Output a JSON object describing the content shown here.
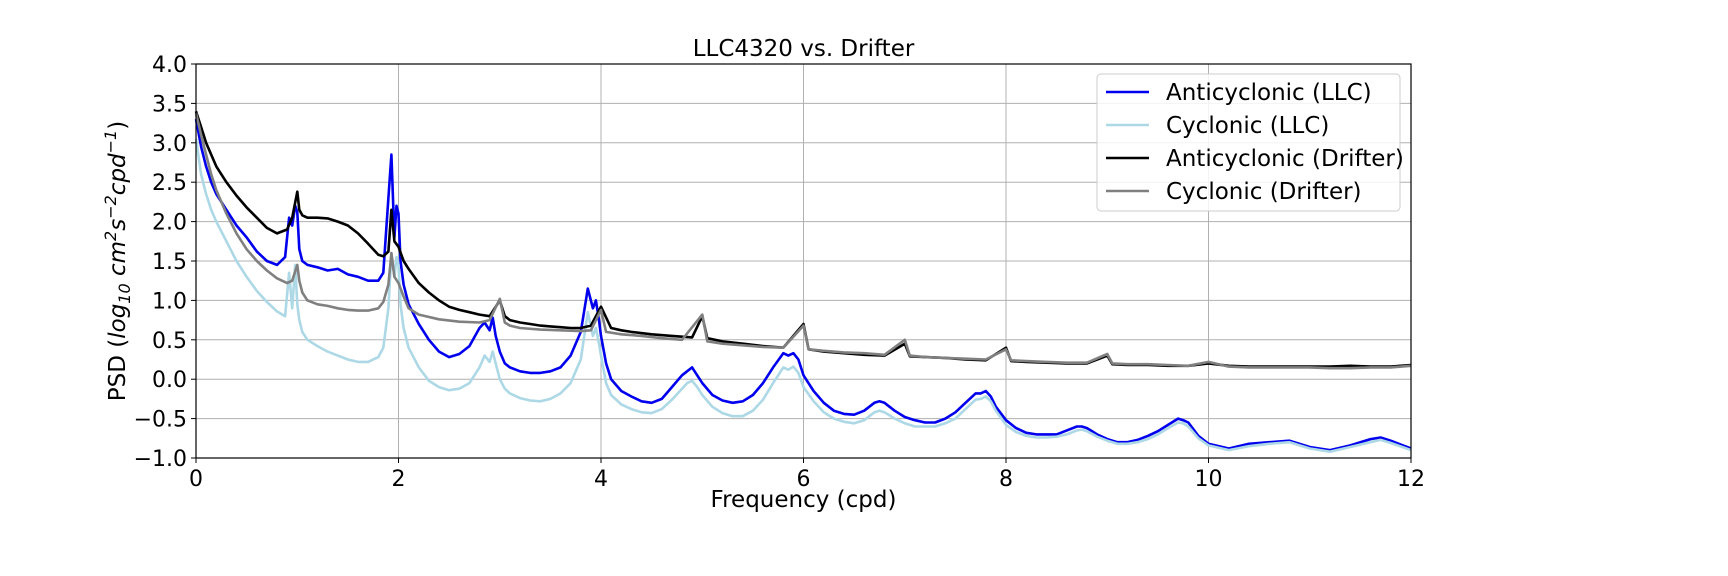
{
  "chart_data": {
    "type": "line",
    "title": "LLC4320 vs. Drifter",
    "xlabel": "Frequency (cpd)",
    "ylabel": "PSD (log10 cm2s-2cpd-1)",
    "ylabel_parts": {
      "prefix": "PSD (",
      "log": "log",
      "log_sub": "10",
      "cm": " cm",
      "cm_sup": "2",
      "s": "s",
      "s_sup": "−2",
      "cpd": "cpd",
      "cpd_sup": "−1",
      "suffix": ")"
    },
    "xlim": [
      0,
      12
    ],
    "ylim": [
      -1.0,
      4.0
    ],
    "xticks": [
      0,
      2,
      4,
      6,
      8,
      10,
      12
    ],
    "xtick_labels": [
      "0",
      "2",
      "4",
      "6",
      "8",
      "10",
      "12"
    ],
    "yticks": [
      -1.0,
      -0.5,
      0.0,
      0.5,
      1.0,
      1.5,
      2.0,
      2.5,
      3.0,
      3.5,
      4.0
    ],
    "ytick_labels": [
      "−1.0",
      "−0.5",
      "0.0",
      "0.5",
      "1.0",
      "1.5",
      "2.0",
      "2.5",
      "3.0",
      "3.5",
      "4.0"
    ],
    "grid": true,
    "legend_position": "top-right",
    "series": [
      {
        "name": "Anticyclonic (LLC)",
        "color": "#0000ee",
        "x": [
          0,
          0.05,
          0.1,
          0.15,
          0.2,
          0.3,
          0.4,
          0.5,
          0.6,
          0.7,
          0.8,
          0.88,
          0.92,
          0.95,
          0.98,
          1.0,
          1.02,
          1.05,
          1.1,
          1.2,
          1.3,
          1.4,
          1.5,
          1.6,
          1.7,
          1.8,
          1.85,
          1.9,
          1.93,
          1.96,
          1.98,
          2.0,
          2.02,
          2.05,
          2.1,
          2.2,
          2.3,
          2.4,
          2.5,
          2.6,
          2.7,
          2.8,
          2.85,
          2.9,
          2.93,
          2.96,
          3.0,
          3.05,
          3.1,
          3.2,
          3.3,
          3.4,
          3.5,
          3.6,
          3.7,
          3.8,
          3.87,
          3.92,
          3.95,
          3.98,
          4.0,
          4.05,
          4.1,
          4.2,
          4.3,
          4.4,
          4.5,
          4.6,
          4.7,
          4.8,
          4.85,
          4.9,
          4.95,
          5.0,
          5.1,
          5.2,
          5.3,
          5.4,
          5.5,
          5.6,
          5.7,
          5.8,
          5.85,
          5.9,
          5.95,
          6.0,
          6.1,
          6.2,
          6.3,
          6.4,
          6.5,
          6.6,
          6.7,
          6.75,
          6.8,
          6.85,
          6.9,
          7.0,
          7.1,
          7.2,
          7.3,
          7.4,
          7.5,
          7.6,
          7.7,
          7.75,
          7.8,
          7.85,
          7.9,
          8.0,
          8.1,
          8.2,
          8.3,
          8.4,
          8.5,
          8.6,
          8.7,
          8.75,
          8.8,
          8.9,
          9.0,
          9.1,
          9.2,
          9.3,
          9.4,
          9.5,
          9.6,
          9.7,
          9.75,
          9.8,
          9.9,
          10.0,
          10.2,
          10.4,
          10.6,
          10.8,
          11.0,
          11.2,
          11.4,
          11.6,
          11.7,
          11.8,
          12.0
        ],
        "y": [
          3.3,
          2.95,
          2.7,
          2.5,
          2.35,
          2.15,
          1.95,
          1.8,
          1.62,
          1.5,
          1.45,
          1.55,
          2.05,
          1.95,
          2.2,
          2.12,
          1.65,
          1.5,
          1.45,
          1.42,
          1.38,
          1.4,
          1.33,
          1.3,
          1.25,
          1.25,
          1.35,
          2.3,
          2.85,
          1.8,
          2.2,
          2.1,
          1.5,
          1.2,
          0.95,
          0.7,
          0.5,
          0.35,
          0.28,
          0.32,
          0.42,
          0.65,
          0.72,
          0.62,
          0.78,
          0.55,
          0.35,
          0.2,
          0.15,
          0.1,
          0.08,
          0.08,
          0.1,
          0.15,
          0.3,
          0.6,
          1.15,
          0.9,
          1.0,
          0.75,
          0.55,
          0.2,
          0.0,
          -0.15,
          -0.22,
          -0.28,
          -0.3,
          -0.25,
          -0.1,
          0.05,
          0.1,
          0.15,
          0.05,
          -0.05,
          -0.2,
          -0.27,
          -0.3,
          -0.28,
          -0.2,
          -0.05,
          0.15,
          0.33,
          0.3,
          0.33,
          0.25,
          0.05,
          -0.15,
          -0.3,
          -0.4,
          -0.44,
          -0.45,
          -0.4,
          -0.3,
          -0.28,
          -0.3,
          -0.35,
          -0.4,
          -0.48,
          -0.52,
          -0.55,
          -0.55,
          -0.5,
          -0.42,
          -0.3,
          -0.18,
          -0.18,
          -0.15,
          -0.22,
          -0.35,
          -0.52,
          -0.62,
          -0.68,
          -0.7,
          -0.7,
          -0.7,
          -0.65,
          -0.6,
          -0.6,
          -0.62,
          -0.7,
          -0.76,
          -0.8,
          -0.8,
          -0.77,
          -0.72,
          -0.66,
          -0.58,
          -0.5,
          -0.52,
          -0.55,
          -0.72,
          -0.82,
          -0.88,
          -0.82,
          -0.8,
          -0.78,
          -0.86,
          -0.9,
          -0.84,
          -0.76,
          -0.74,
          -0.78,
          -0.88
        ]
      },
      {
        "name": "Cyclonic (LLC)",
        "color": "#add8e6",
        "x": [
          0,
          0.05,
          0.1,
          0.15,
          0.2,
          0.3,
          0.4,
          0.5,
          0.6,
          0.7,
          0.8,
          0.88,
          0.92,
          0.95,
          0.98,
          1.0,
          1.02,
          1.05,
          1.1,
          1.2,
          1.3,
          1.4,
          1.5,
          1.6,
          1.7,
          1.8,
          1.85,
          1.9,
          1.93,
          1.96,
          1.98,
          2.0,
          2.02,
          2.05,
          2.1,
          2.2,
          2.3,
          2.4,
          2.5,
          2.6,
          2.7,
          2.8,
          2.85,
          2.9,
          2.93,
          2.96,
          3.0,
          3.05,
          3.1,
          3.2,
          3.3,
          3.4,
          3.5,
          3.6,
          3.7,
          3.8,
          3.87,
          3.92,
          3.95,
          3.98,
          4.0,
          4.05,
          4.1,
          4.2,
          4.3,
          4.4,
          4.5,
          4.6,
          4.7,
          4.8,
          4.85,
          4.9,
          4.95,
          5.0,
          5.1,
          5.2,
          5.3,
          5.4,
          5.5,
          5.6,
          5.7,
          5.8,
          5.85,
          5.9,
          5.95,
          6.0,
          6.1,
          6.2,
          6.3,
          6.4,
          6.5,
          6.6,
          6.7,
          6.75,
          6.8,
          6.85,
          6.9,
          7.0,
          7.1,
          7.2,
          7.3,
          7.4,
          7.5,
          7.6,
          7.7,
          7.75,
          7.8,
          7.85,
          7.9,
          8.0,
          8.1,
          8.2,
          8.3,
          8.4,
          8.5,
          8.6,
          8.7,
          8.75,
          8.8,
          8.9,
          9.0,
          9.1,
          9.2,
          9.3,
          9.4,
          9.5,
          9.6,
          9.7,
          9.75,
          9.8,
          9.9,
          10.0,
          10.2,
          10.4,
          10.6,
          10.8,
          11.0,
          11.2,
          11.4,
          11.6,
          11.7,
          11.8,
          12.0
        ],
        "y": [
          3.05,
          2.6,
          2.35,
          2.15,
          2.0,
          1.75,
          1.5,
          1.3,
          1.12,
          0.98,
          0.86,
          0.8,
          1.35,
          0.9,
          1.45,
          0.95,
          0.75,
          0.6,
          0.5,
          0.42,
          0.35,
          0.3,
          0.25,
          0.22,
          0.22,
          0.28,
          0.4,
          0.9,
          1.6,
          1.3,
          1.55,
          1.45,
          0.95,
          0.65,
          0.4,
          0.15,
          -0.02,
          -0.1,
          -0.14,
          -0.12,
          -0.05,
          0.15,
          0.3,
          0.22,
          0.35,
          0.2,
          0.0,
          -0.12,
          -0.18,
          -0.24,
          -0.27,
          -0.28,
          -0.25,
          -0.18,
          -0.05,
          0.25,
          0.85,
          0.55,
          0.65,
          0.45,
          0.3,
          -0.05,
          -0.2,
          -0.32,
          -0.38,
          -0.42,
          -0.43,
          -0.38,
          -0.26,
          -0.12,
          -0.05,
          -0.02,
          -0.1,
          -0.2,
          -0.35,
          -0.43,
          -0.47,
          -0.47,
          -0.4,
          -0.26,
          -0.05,
          0.15,
          0.12,
          0.16,
          0.08,
          -0.1,
          -0.28,
          -0.42,
          -0.5,
          -0.54,
          -0.56,
          -0.52,
          -0.42,
          -0.4,
          -0.42,
          -0.46,
          -0.5,
          -0.56,
          -0.6,
          -0.6,
          -0.6,
          -0.56,
          -0.5,
          -0.38,
          -0.26,
          -0.25,
          -0.22,
          -0.28,
          -0.4,
          -0.58,
          -0.67,
          -0.72,
          -0.74,
          -0.74,
          -0.73,
          -0.7,
          -0.65,
          -0.64,
          -0.66,
          -0.73,
          -0.78,
          -0.82,
          -0.82,
          -0.8,
          -0.76,
          -0.7,
          -0.62,
          -0.55,
          -0.56,
          -0.6,
          -0.75,
          -0.84,
          -0.9,
          -0.85,
          -0.82,
          -0.8,
          -0.88,
          -0.92,
          -0.86,
          -0.8,
          -0.77,
          -0.81,
          -0.9
        ]
      },
      {
        "name": "Anticyclonic (Drifter)",
        "color": "#000000",
        "x": [
          0,
          0.05,
          0.1,
          0.15,
          0.2,
          0.3,
          0.4,
          0.5,
          0.6,
          0.7,
          0.8,
          0.9,
          0.95,
          1.0,
          1.02,
          1.05,
          1.1,
          1.2,
          1.3,
          1.4,
          1.5,
          1.6,
          1.7,
          1.75,
          1.8,
          1.85,
          1.9,
          1.93,
          1.96,
          2.0,
          2.05,
          2.1,
          2.2,
          2.3,
          2.4,
          2.5,
          2.6,
          2.7,
          2.8,
          2.9,
          3.0,
          3.05,
          3.1,
          3.2,
          3.3,
          3.4,
          3.5,
          3.6,
          3.7,
          3.8,
          3.9,
          4.0,
          4.1,
          4.2,
          4.3,
          4.5,
          4.7,
          4.9,
          5.0,
          5.05,
          5.2,
          5.4,
          5.6,
          5.8,
          6.0,
          6.05,
          6.2,
          6.4,
          6.6,
          6.8,
          7.0,
          7.05,
          7.2,
          7.4,
          7.6,
          7.8,
          8.0,
          8.05,
          8.2,
          8.4,
          8.6,
          8.8,
          9.0,
          9.05,
          9.2,
          9.4,
          9.6,
          9.8,
          10.0,
          10.2,
          10.4,
          10.6,
          10.8,
          11.0,
          11.2,
          11.4,
          11.6,
          11.8,
          12.0
        ],
        "y": [
          3.4,
          3.2,
          3.0,
          2.85,
          2.7,
          2.5,
          2.33,
          2.18,
          2.05,
          1.92,
          1.85,
          1.9,
          2.05,
          2.38,
          2.15,
          2.08,
          2.05,
          2.05,
          2.04,
          2.0,
          1.95,
          1.85,
          1.72,
          1.65,
          1.58,
          1.56,
          1.62,
          2.15,
          1.75,
          1.68,
          1.5,
          1.4,
          1.22,
          1.1,
          1.0,
          0.92,
          0.88,
          0.85,
          0.82,
          0.8,
          1.0,
          0.8,
          0.75,
          0.72,
          0.7,
          0.68,
          0.67,
          0.66,
          0.65,
          0.65,
          0.68,
          0.92,
          0.65,
          0.62,
          0.6,
          0.57,
          0.55,
          0.53,
          0.8,
          0.52,
          0.48,
          0.45,
          0.42,
          0.4,
          0.7,
          0.38,
          0.35,
          0.33,
          0.31,
          0.3,
          0.45,
          0.29,
          0.28,
          0.27,
          0.25,
          0.24,
          0.4,
          0.23,
          0.22,
          0.21,
          0.2,
          0.2,
          0.3,
          0.19,
          0.18,
          0.18,
          0.17,
          0.17,
          0.2,
          0.17,
          0.16,
          0.16,
          0.16,
          0.16,
          0.16,
          0.17,
          0.16,
          0.16,
          0.18
        ]
      },
      {
        "name": "Cyclonic (Drifter)",
        "color": "#808080",
        "x": [
          0,
          0.05,
          0.1,
          0.15,
          0.2,
          0.3,
          0.4,
          0.5,
          0.6,
          0.7,
          0.8,
          0.9,
          0.95,
          1.0,
          1.02,
          1.05,
          1.1,
          1.2,
          1.3,
          1.4,
          1.5,
          1.6,
          1.7,
          1.8,
          1.85,
          1.9,
          1.93,
          1.96,
          2.0,
          2.05,
          2.1,
          2.2,
          2.4,
          2.6,
          2.8,
          2.9,
          3.0,
          3.05,
          3.1,
          3.2,
          3.4,
          3.6,
          3.8,
          3.9,
          4.0,
          4.05,
          4.2,
          4.4,
          4.6,
          4.8,
          5.0,
          5.05,
          5.2,
          5.4,
          5.6,
          5.8,
          6.0,
          6.05,
          6.2,
          6.4,
          6.6,
          6.8,
          7.0,
          7.05,
          7.2,
          7.4,
          7.6,
          7.8,
          8.0,
          8.05,
          8.2,
          8.4,
          8.6,
          8.8,
          9.0,
          9.05,
          9.2,
          9.4,
          9.6,
          9.8,
          10.0,
          10.2,
          10.4,
          10.6,
          10.8,
          11.0,
          11.2,
          11.4,
          11.6,
          11.8,
          12.0
        ],
        "y": [
          3.38,
          3.1,
          2.85,
          2.6,
          2.4,
          2.1,
          1.85,
          1.65,
          1.5,
          1.38,
          1.28,
          1.22,
          1.25,
          1.45,
          1.25,
          1.1,
          1.0,
          0.95,
          0.93,
          0.9,
          0.88,
          0.87,
          0.87,
          0.9,
          0.98,
          1.2,
          1.6,
          1.3,
          1.22,
          1.05,
          0.9,
          0.82,
          0.76,
          0.73,
          0.72,
          0.75,
          1.02,
          0.72,
          0.68,
          0.65,
          0.63,
          0.62,
          0.61,
          0.62,
          0.88,
          0.6,
          0.57,
          0.55,
          0.52,
          0.5,
          0.82,
          0.48,
          0.45,
          0.43,
          0.41,
          0.4,
          0.68,
          0.38,
          0.36,
          0.34,
          0.33,
          0.31,
          0.5,
          0.3,
          0.28,
          0.27,
          0.26,
          0.25,
          0.38,
          0.24,
          0.23,
          0.22,
          0.21,
          0.21,
          0.32,
          0.2,
          0.19,
          0.19,
          0.18,
          0.17,
          0.22,
          0.16,
          0.15,
          0.15,
          0.15,
          0.15,
          0.14,
          0.14,
          0.15,
          0.15,
          0.17
        ]
      }
    ]
  }
}
